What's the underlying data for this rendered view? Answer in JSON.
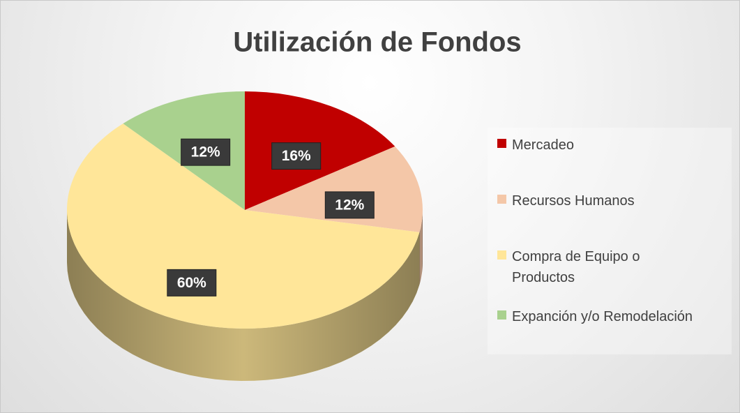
{
  "chart_data": {
    "type": "pie3d",
    "title": "Utilización de Fondos",
    "categories": [
      "Mercadeo",
      "Recursos Humanos",
      "Compra de Equipo o Productos",
      "Expanción y/o Remodelación"
    ],
    "values": [
      16,
      12,
      60,
      12
    ],
    "value_labels": [
      "16%",
      "12%",
      "60%",
      "12%"
    ],
    "colors": [
      "#c00000",
      "#f4c7a8",
      "#ffe699",
      "#a9d18e"
    ],
    "legend": "right"
  }
}
